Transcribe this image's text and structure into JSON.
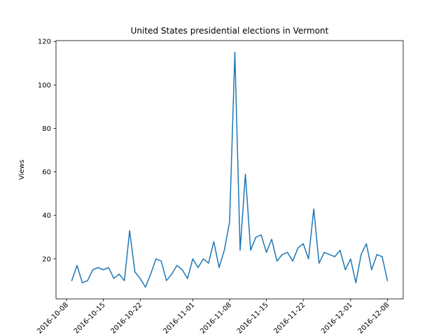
{
  "chart_data": {
    "type": "line",
    "title": "United States presidential elections in Vermont",
    "xlabel": "",
    "ylabel": "Views",
    "ylim": [
      1.6,
      120.4
    ],
    "xlim": [
      "2016-10-06",
      "2016-12-11"
    ],
    "grid": false,
    "legend": "none",
    "line_color": "#1f77b4",
    "x_ticks": [
      "2016-10-08",
      "2016-10-15",
      "2016-10-22",
      "2016-11-01",
      "2016-11-08",
      "2016-11-15",
      "2016-11-22",
      "2016-12-01",
      "2016-12-08"
    ],
    "y_ticks": [
      20,
      40,
      60,
      80,
      100,
      120
    ],
    "series": [
      {
        "x": [
          "2016-10-09",
          "2016-10-10",
          "2016-10-11",
          "2016-10-12",
          "2016-10-13",
          "2016-10-14",
          "2016-10-15",
          "2016-10-16",
          "2016-10-17",
          "2016-10-18",
          "2016-10-19",
          "2016-10-20",
          "2016-10-21",
          "2016-10-22",
          "2016-10-23",
          "2016-10-24",
          "2016-10-25",
          "2016-10-26",
          "2016-10-27",
          "2016-10-28",
          "2016-10-29",
          "2016-10-30",
          "2016-10-31",
          "2016-11-01",
          "2016-11-02",
          "2016-11-03",
          "2016-11-04",
          "2016-11-05",
          "2016-11-06",
          "2016-11-07",
          "2016-11-08",
          "2016-11-09",
          "2016-11-10",
          "2016-11-11",
          "2016-11-12",
          "2016-11-13",
          "2016-11-14",
          "2016-11-15",
          "2016-11-16",
          "2016-11-17",
          "2016-11-18",
          "2016-11-19",
          "2016-11-20",
          "2016-11-21",
          "2016-11-22",
          "2016-11-23",
          "2016-11-24",
          "2016-11-25",
          "2016-11-26",
          "2016-11-27",
          "2016-11-28",
          "2016-11-29",
          "2016-11-30",
          "2016-12-01",
          "2016-12-02",
          "2016-12-03",
          "2016-12-04",
          "2016-12-05",
          "2016-12-06",
          "2016-12-07",
          "2016-12-08"
        ],
        "values": [
          10,
          17,
          9,
          10,
          15,
          16,
          15,
          16,
          11,
          13,
          10,
          33,
          14,
          11,
          7,
          13,
          20,
          19,
          10,
          13,
          17,
          15,
          11,
          20,
          16,
          20,
          18,
          28,
          16,
          24,
          37,
          115,
          24,
          59,
          24,
          30,
          31,
          23,
          29,
          19,
          22,
          23,
          19,
          25,
          27,
          20,
          43,
          18,
          23,
          22,
          21,
          24,
          15,
          20,
          9,
          22,
          27,
          15,
          22,
          21,
          10
        ]
      }
    ]
  }
}
